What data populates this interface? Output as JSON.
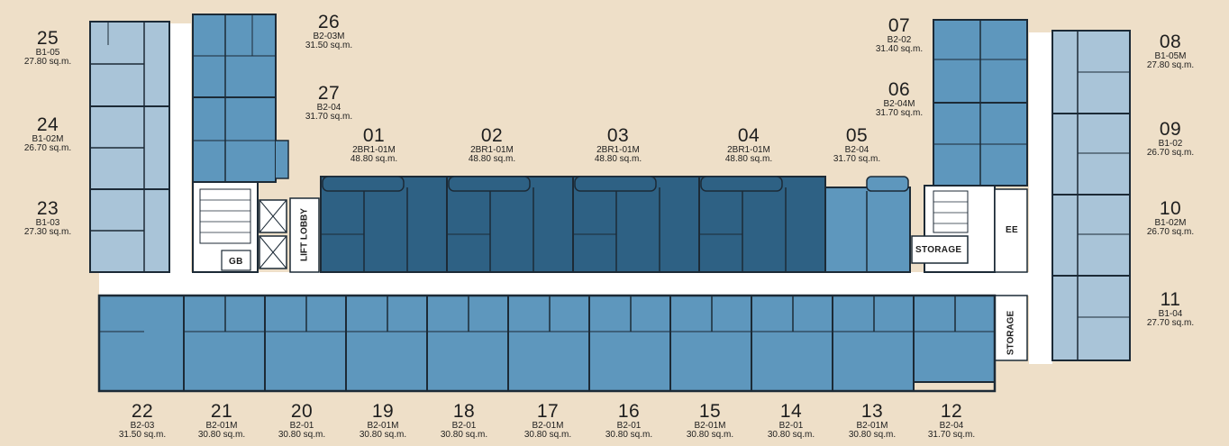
{
  "units": [
    {
      "num": "25",
      "type": "B1-05",
      "area": "27.80 sq.m.",
      "tier": "light"
    },
    {
      "num": "24",
      "type": "B1-02M",
      "area": "26.70 sq.m.",
      "tier": "light"
    },
    {
      "num": "23",
      "type": "B1-03",
      "area": "27.30 sq.m.",
      "tier": "light"
    },
    {
      "num": "26",
      "type": "B2-03M",
      "area": "31.50 sq.m.",
      "tier": "mid"
    },
    {
      "num": "27",
      "type": "B2-04",
      "area": "31.70 sq.m.",
      "tier": "mid"
    },
    {
      "num": "01",
      "type": "2BR1-01M",
      "area": "48.80 sq.m.",
      "tier": "dark"
    },
    {
      "num": "02",
      "type": "2BR1-01M",
      "area": "48.80 sq.m.",
      "tier": "dark"
    },
    {
      "num": "03",
      "type": "2BR1-01M",
      "area": "48.80 sq.m.",
      "tier": "dark"
    },
    {
      "num": "04",
      "type": "2BR1-01M",
      "area": "48.80 sq.m.",
      "tier": "dark"
    },
    {
      "num": "05",
      "type": "B2-04",
      "area": "31.70 sq.m.",
      "tier": "mid"
    },
    {
      "num": "07",
      "type": "B2-02",
      "area": "31.40 sq.m.",
      "tier": "mid"
    },
    {
      "num": "06",
      "type": "B2-04M",
      "area": "31.70 sq.m.",
      "tier": "mid"
    },
    {
      "num": "08",
      "type": "B1-05M",
      "area": "27.80 sq.m.",
      "tier": "light"
    },
    {
      "num": "09",
      "type": "B1-02",
      "area": "26.70 sq.m.",
      "tier": "light"
    },
    {
      "num": "10",
      "type": "B1-02M",
      "area": "26.70 sq.m.",
      "tier": "light"
    },
    {
      "num": "11",
      "type": "B1-04",
      "area": "27.70 sq.m.",
      "tier": "light"
    },
    {
      "num": "22",
      "type": "B2-03",
      "area": "31.50 sq.m.",
      "tier": "mid"
    },
    {
      "num": "21",
      "type": "B2-01M",
      "area": "30.80 sq.m.",
      "tier": "mid"
    },
    {
      "num": "20",
      "type": "B2-01",
      "area": "30.80 sq.m.",
      "tier": "mid"
    },
    {
      "num": "19",
      "type": "B2-01M",
      "area": "30.80 sq.m.",
      "tier": "mid"
    },
    {
      "num": "18",
      "type": "B2-01",
      "area": "30.80 sq.m.",
      "tier": "mid"
    },
    {
      "num": "17",
      "type": "B2-01M",
      "area": "30.80 sq.m.",
      "tier": "mid"
    },
    {
      "num": "16",
      "type": "B2-01",
      "area": "30.80 sq.m.",
      "tier": "mid"
    },
    {
      "num": "15",
      "type": "B2-01M",
      "area": "30.80 sq.m.",
      "tier": "mid"
    },
    {
      "num": "14",
      "type": "B2-01",
      "area": "30.80 sq.m.",
      "tier": "mid"
    },
    {
      "num": "13",
      "type": "B2-01M",
      "area": "30.80 sq.m.",
      "tier": "mid"
    },
    {
      "num": "12",
      "type": "B2-04",
      "area": "31.70 sq.m.",
      "tier": "mid"
    }
  ],
  "rooms": {
    "lift_lobby": "LIFT LOBBY",
    "gb": "GB",
    "storage_top": "STORAGE",
    "storage_bottom": "STORAGE",
    "ee": "EE"
  },
  "colors": {
    "background": "#eedfc8",
    "light_unit": "#a9c4d8",
    "mid_unit": "#5e97bd",
    "dark_unit": "#2e6184",
    "wall": "#1c2a36",
    "corridor": "#ffffff"
  }
}
